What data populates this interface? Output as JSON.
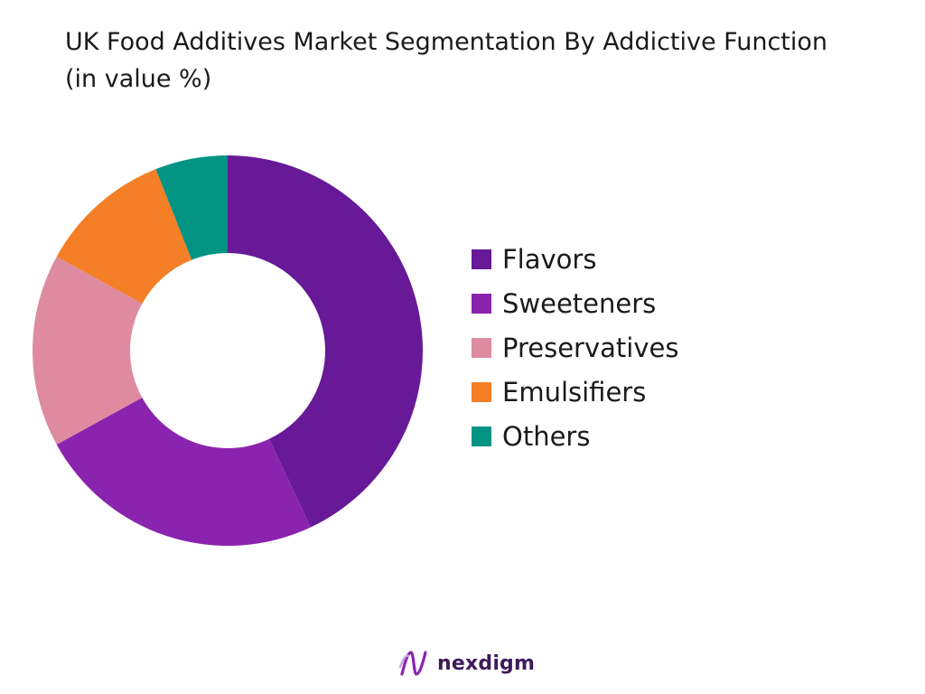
{
  "chart_data": {
    "type": "pie",
    "title": "UK Food Additives Market Segmentation By Addictive Function (in value %)",
    "categories": [
      "Flavors",
      "Sweeteners",
      "Preservatives",
      "Emulsifiers",
      "Others"
    ],
    "values": [
      43,
      24,
      16,
      11,
      6
    ],
    "colors": [
      "#671998",
      "#8A24AE",
      "#DE8BA0",
      "#F47F26",
      "#029483"
    ],
    "donut": true,
    "legend_position": "right"
  },
  "brand": {
    "name": "nexdigm",
    "icon": "nexdigm-logo-icon"
  }
}
